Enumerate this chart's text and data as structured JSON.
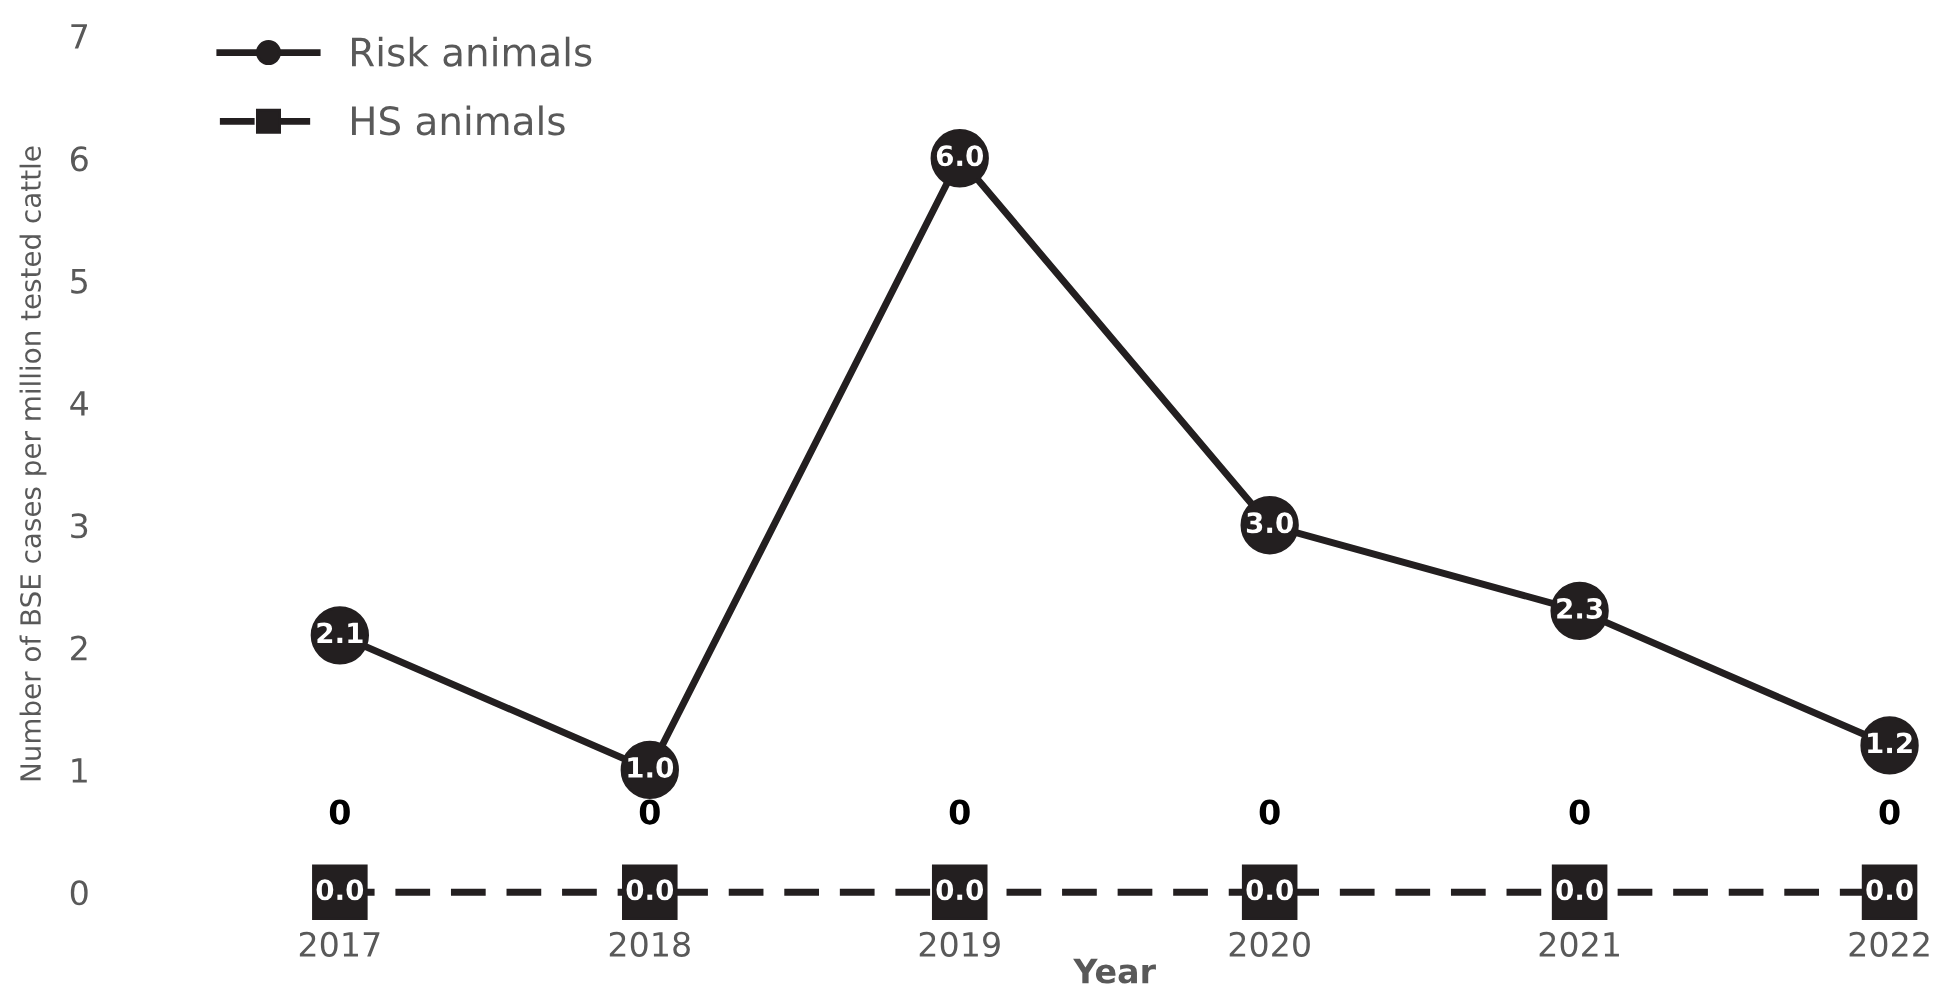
{
  "chart_data": {
    "type": "line",
    "xlabel": "Year",
    "ylabel": "Number of BSE cases per million tested cattle",
    "categories": [
      "2017",
      "2018",
      "2019",
      "2020",
      "2021",
      "2022"
    ],
    "series": [
      {
        "name": "Risk animals",
        "color": "#231f20",
        "marker": "circle",
        "line_style": "solid",
        "values": [
          2.1,
          1.0,
          6.0,
          3.0,
          2.3,
          1.2
        ],
        "value_labels": [
          "2.1",
          "1.0",
          "6.0",
          "3.0",
          "2.3",
          "1.2"
        ]
      },
      {
        "name": "HS animals",
        "color": "#231f20",
        "marker": "square",
        "line_style": "dashed",
        "values": [
          0,
          0,
          0,
          0,
          0,
          0
        ],
        "value_labels": [
          "0.0",
          "0.0",
          "0.0",
          "0.0",
          "0.0",
          "0.0"
        ]
      }
    ],
    "annotations": [
      {
        "text": "0",
        "x": "2017",
        "y": 0
      },
      {
        "text": "0",
        "x": "2018",
        "y": 0
      },
      {
        "text": "0",
        "x": "2019",
        "y": 0
      },
      {
        "text": "0",
        "x": "2020",
        "y": 0
      },
      {
        "text": "0",
        "x": "2021",
        "y": 0
      },
      {
        "text": "0",
        "x": "2022",
        "y": 0
      }
    ],
    "ylim": [
      0,
      7
    ],
    "yticks": [
      0,
      1,
      2,
      3,
      4,
      5,
      6,
      7
    ],
    "grid": false,
    "legend": "top left"
  }
}
